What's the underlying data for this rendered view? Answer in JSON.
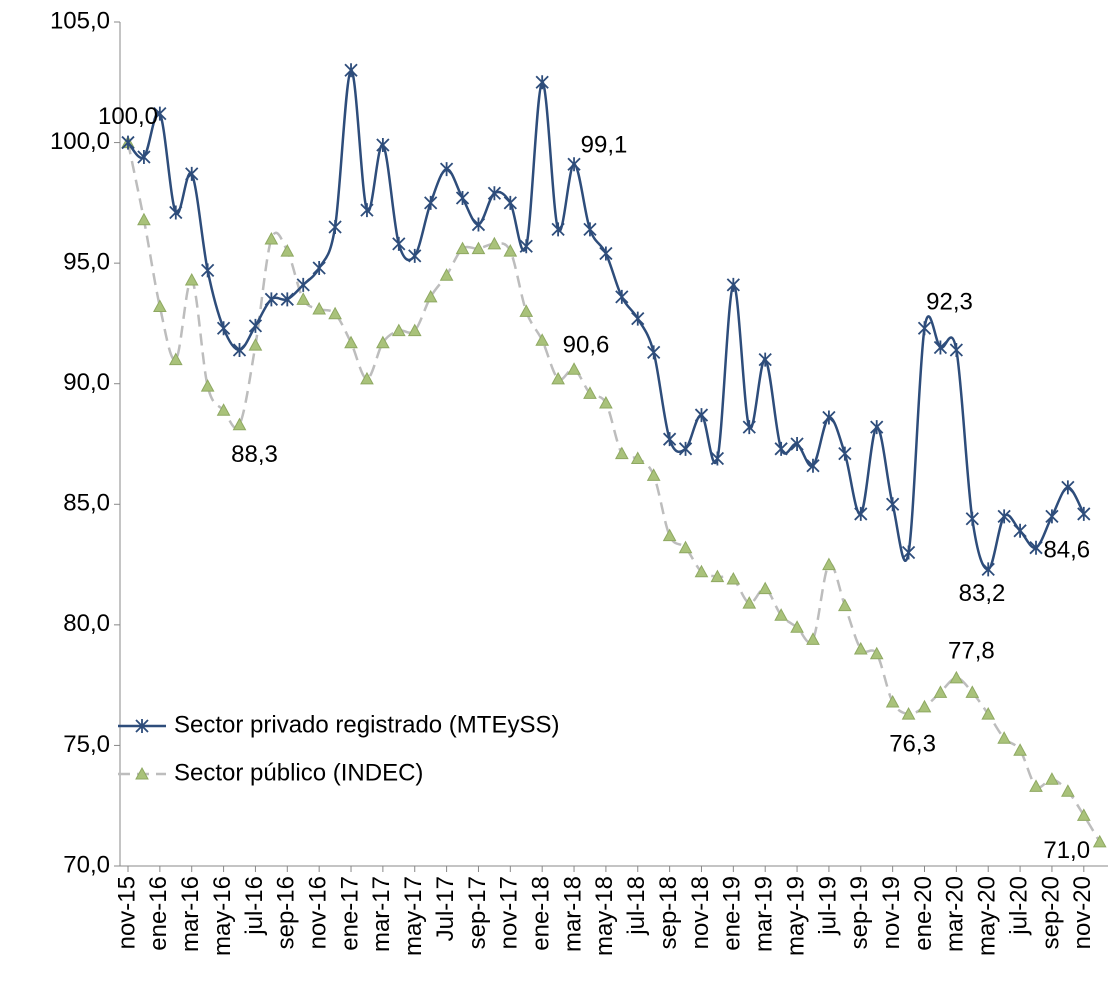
{
  "chart_data": {
    "type": "line",
    "categories": [
      "nov-15",
      null,
      "ene-16",
      null,
      "mar-16",
      null,
      "may-16",
      null,
      "jul-16",
      null,
      "sep-16",
      null,
      "nov-16",
      null,
      "ene-17",
      null,
      "mar-17",
      null,
      "may-17",
      null,
      "Jul-17",
      null,
      "sep-17",
      null,
      "nov-17",
      null,
      "ene-18",
      null,
      "mar-18",
      null,
      "may-18",
      null,
      "jul-18",
      null,
      "sep-18",
      null,
      "nov-18",
      null,
      "ene-19",
      null,
      "mar-19",
      null,
      "may-19",
      null,
      "jul-19",
      null,
      "sep-19",
      null,
      "nov-19",
      null,
      "ene-20",
      null,
      "mar-20",
      null,
      "may-20",
      null,
      "jul-20",
      null,
      "sep-20",
      null,
      "nov-20",
      null
    ],
    "series": [
      {
        "name": "Sector privado registrado (MTEySS)",
        "color": "#2e4d7b",
        "values": [
          100.0,
          99.4,
          101.2,
          97.1,
          98.7,
          94.7,
          92.3,
          91.4,
          92.4,
          93.5,
          93.5,
          94.1,
          94.8,
          96.5,
          103.0,
          97.2,
          99.9,
          95.8,
          95.3,
          97.5,
          98.9,
          97.7,
          96.6,
          97.9,
          97.5,
          95.7,
          102.5,
          96.4,
          99.1,
          96.4,
          95.4,
          93.6,
          92.7,
          91.3,
          87.7,
          87.3,
          88.7,
          86.9,
          94.1,
          88.2,
          91.0,
          87.3,
          87.5,
          86.6,
          88.6,
          87.1,
          84.6,
          88.2,
          85.0,
          83.0,
          92.3,
          91.5,
          91.4,
          84.4,
          82.3,
          84.5,
          83.9,
          83.2,
          84.5,
          85.7,
          84.6,
          null
        ],
        "value_labels": [
          "100,0",
          null,
          null,
          null,
          null,
          null,
          null,
          null,
          null,
          null,
          null,
          null,
          null,
          null,
          null,
          null,
          null,
          null,
          null,
          null,
          null,
          null,
          null,
          null,
          null,
          null,
          null,
          null,
          "99,1",
          null,
          null,
          null,
          null,
          null,
          null,
          null,
          null,
          null,
          null,
          null,
          null,
          null,
          null,
          null,
          null,
          null,
          null,
          null,
          null,
          null,
          "92,3",
          null,
          null,
          null,
          null,
          null,
          null,
          "83,2",
          null,
          null,
          "84,6",
          null
        ]
      },
      {
        "name": "Sector público (INDEC)",
        "color": "#a9c27a",
        "values": [
          100.0,
          96.8,
          93.2,
          91.0,
          94.3,
          89.9,
          88.9,
          88.3,
          91.6,
          96.0,
          95.5,
          93.5,
          93.1,
          92.9,
          91.7,
          90.2,
          91.7,
          92.2,
          92.2,
          93.6,
          94.5,
          95.6,
          95.6,
          95.8,
          95.5,
          93.0,
          91.8,
          90.2,
          90.6,
          89.6,
          89.2,
          87.1,
          86.9,
          86.2,
          83.7,
          83.2,
          82.2,
          82.0,
          81.9,
          80.9,
          81.5,
          80.4,
          79.9,
          79.4,
          82.5,
          80.8,
          79.0,
          78.8,
          76.8,
          76.3,
          76.6,
          77.2,
          77.8,
          77.2,
          76.3,
          75.3,
          74.8,
          73.3,
          73.6,
          73.1,
          72.1,
          71.0
        ],
        "value_labels": [
          null,
          null,
          null,
          null,
          null,
          null,
          null,
          "88,3",
          null,
          null,
          null,
          null,
          null,
          null,
          null,
          null,
          null,
          null,
          null,
          null,
          null,
          null,
          null,
          null,
          null,
          null,
          null,
          null,
          "90,6",
          null,
          null,
          null,
          null,
          null,
          null,
          null,
          null,
          null,
          null,
          null,
          null,
          null,
          null,
          null,
          null,
          null,
          null,
          null,
          null,
          "76,3",
          null,
          null,
          "77,8",
          null,
          null,
          null,
          null,
          null,
          null,
          null,
          null,
          "71,0"
        ]
      }
    ],
    "ylim": [
      70,
      105
    ],
    "yticks": [
      {
        "value": 70,
        "label": "70,0"
      },
      {
        "value": 75,
        "label": "75,0"
      },
      {
        "value": 80,
        "label": "80,0"
      },
      {
        "value": 85,
        "label": "85,0"
      },
      {
        "value": 90,
        "label": "90,0"
      },
      {
        "value": 95,
        "label": "95,0"
      },
      {
        "value": 100,
        "label": "100,0"
      },
      {
        "value": 105,
        "label": "105,0"
      }
    ],
    "grid": false
  }
}
